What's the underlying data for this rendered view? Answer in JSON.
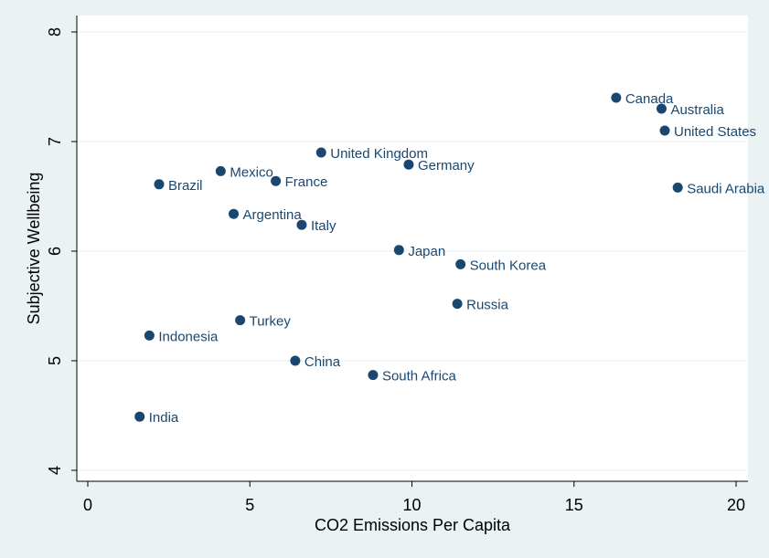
{
  "chart_data": {
    "type": "scatter",
    "title": "",
    "xlabel": "CO2 Emissions Per Capita",
    "ylabel": "Subjective Wellbeing",
    "xlim": [
      0,
      20
    ],
    "ylim": [
      4,
      8
    ],
    "x_ticks": [
      0,
      5,
      10,
      15,
      20
    ],
    "y_ticks": [
      4,
      5,
      6,
      7,
      8
    ],
    "x_tick_labels": [
      "0",
      "5",
      "10",
      "15",
      "20"
    ],
    "y_tick_labels": [
      "4",
      "5",
      "6",
      "7",
      "8"
    ],
    "grid": "horizontal",
    "legend": "none",
    "colors": {
      "background": "#eaf2f3",
      "plot_background": "#ffffff",
      "marker": "#1a476f",
      "label": "#1a476f",
      "grid": "#eaf2f3"
    },
    "points": [
      {
        "label": "Canada",
        "x": 16.3,
        "y": 7.4
      },
      {
        "label": "Australia",
        "x": 17.7,
        "y": 7.3
      },
      {
        "label": "United States",
        "x": 17.8,
        "y": 7.1
      },
      {
        "label": "Saudi Arabia",
        "x": 18.2,
        "y": 6.58
      },
      {
        "label": "United Kingdom",
        "x": 7.2,
        "y": 6.9
      },
      {
        "label": "Germany",
        "x": 9.9,
        "y": 6.79
      },
      {
        "label": "Mexico",
        "x": 4.1,
        "y": 6.73
      },
      {
        "label": "France",
        "x": 5.8,
        "y": 6.64
      },
      {
        "label": "Brazil",
        "x": 2.2,
        "y": 6.61
      },
      {
        "label": "Argentina",
        "x": 4.5,
        "y": 6.34
      },
      {
        "label": "Italy",
        "x": 6.6,
        "y": 6.24
      },
      {
        "label": "Japan",
        "x": 9.6,
        "y": 6.01
      },
      {
        "label": "South Korea",
        "x": 11.5,
        "y": 5.88
      },
      {
        "label": "Russia",
        "x": 11.4,
        "y": 5.52
      },
      {
        "label": "Turkey",
        "x": 4.7,
        "y": 5.37
      },
      {
        "label": "Indonesia",
        "x": 1.9,
        "y": 5.23
      },
      {
        "label": "China",
        "x": 6.4,
        "y": 5.0
      },
      {
        "label": "South Africa",
        "x": 8.8,
        "y": 4.87
      },
      {
        "label": "India",
        "x": 1.6,
        "y": 4.49
      }
    ]
  }
}
